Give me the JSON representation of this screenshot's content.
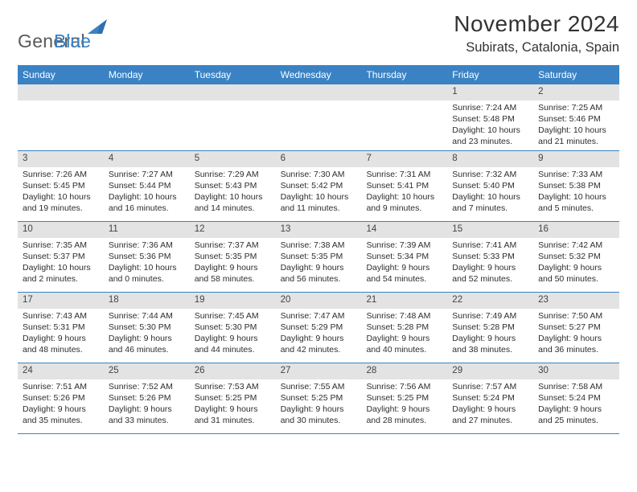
{
  "logo": {
    "word1": "General",
    "word2": "Blue",
    "color_general": "#5a5a5a",
    "color_blue": "#3a82c4"
  },
  "title": {
    "month": "November 2024",
    "location": "Subirats, Catalonia, Spain",
    "title_fontsize": 28
  },
  "day_headers": [
    "Sunday",
    "Monday",
    "Tuesday",
    "Wednesday",
    "Thursday",
    "Friday",
    "Saturday"
  ],
  "colors": {
    "header_bg": "#3a82c4",
    "daynum_bg": "#e3e3e3",
    "border": "#3a82c4",
    "text": "#2d2d2d",
    "page_bg": "#ffffff"
  },
  "weeks": [
    [
      null,
      null,
      null,
      null,
      null,
      {
        "day": "1",
        "sunrise": "Sunrise: 7:24 AM",
        "sunset": "Sunset: 5:48 PM",
        "daylight": "Daylight: 10 hours and 23 minutes."
      },
      {
        "day": "2",
        "sunrise": "Sunrise: 7:25 AM",
        "sunset": "Sunset: 5:46 PM",
        "daylight": "Daylight: 10 hours and 21 minutes."
      }
    ],
    [
      {
        "day": "3",
        "sunrise": "Sunrise: 7:26 AM",
        "sunset": "Sunset: 5:45 PM",
        "daylight": "Daylight: 10 hours and 19 minutes."
      },
      {
        "day": "4",
        "sunrise": "Sunrise: 7:27 AM",
        "sunset": "Sunset: 5:44 PM",
        "daylight": "Daylight: 10 hours and 16 minutes."
      },
      {
        "day": "5",
        "sunrise": "Sunrise: 7:29 AM",
        "sunset": "Sunset: 5:43 PM",
        "daylight": "Daylight: 10 hours and 14 minutes."
      },
      {
        "day": "6",
        "sunrise": "Sunrise: 7:30 AM",
        "sunset": "Sunset: 5:42 PM",
        "daylight": "Daylight: 10 hours and 11 minutes."
      },
      {
        "day": "7",
        "sunrise": "Sunrise: 7:31 AM",
        "sunset": "Sunset: 5:41 PM",
        "daylight": "Daylight: 10 hours and 9 minutes."
      },
      {
        "day": "8",
        "sunrise": "Sunrise: 7:32 AM",
        "sunset": "Sunset: 5:40 PM",
        "daylight": "Daylight: 10 hours and 7 minutes."
      },
      {
        "day": "9",
        "sunrise": "Sunrise: 7:33 AM",
        "sunset": "Sunset: 5:38 PM",
        "daylight": "Daylight: 10 hours and 5 minutes."
      }
    ],
    [
      {
        "day": "10",
        "sunrise": "Sunrise: 7:35 AM",
        "sunset": "Sunset: 5:37 PM",
        "daylight": "Daylight: 10 hours and 2 minutes."
      },
      {
        "day": "11",
        "sunrise": "Sunrise: 7:36 AM",
        "sunset": "Sunset: 5:36 PM",
        "daylight": "Daylight: 10 hours and 0 minutes."
      },
      {
        "day": "12",
        "sunrise": "Sunrise: 7:37 AM",
        "sunset": "Sunset: 5:35 PM",
        "daylight": "Daylight: 9 hours and 58 minutes."
      },
      {
        "day": "13",
        "sunrise": "Sunrise: 7:38 AM",
        "sunset": "Sunset: 5:35 PM",
        "daylight": "Daylight: 9 hours and 56 minutes."
      },
      {
        "day": "14",
        "sunrise": "Sunrise: 7:39 AM",
        "sunset": "Sunset: 5:34 PM",
        "daylight": "Daylight: 9 hours and 54 minutes."
      },
      {
        "day": "15",
        "sunrise": "Sunrise: 7:41 AM",
        "sunset": "Sunset: 5:33 PM",
        "daylight": "Daylight: 9 hours and 52 minutes."
      },
      {
        "day": "16",
        "sunrise": "Sunrise: 7:42 AM",
        "sunset": "Sunset: 5:32 PM",
        "daylight": "Daylight: 9 hours and 50 minutes."
      }
    ],
    [
      {
        "day": "17",
        "sunrise": "Sunrise: 7:43 AM",
        "sunset": "Sunset: 5:31 PM",
        "daylight": "Daylight: 9 hours and 48 minutes."
      },
      {
        "day": "18",
        "sunrise": "Sunrise: 7:44 AM",
        "sunset": "Sunset: 5:30 PM",
        "daylight": "Daylight: 9 hours and 46 minutes."
      },
      {
        "day": "19",
        "sunrise": "Sunrise: 7:45 AM",
        "sunset": "Sunset: 5:30 PM",
        "daylight": "Daylight: 9 hours and 44 minutes."
      },
      {
        "day": "20",
        "sunrise": "Sunrise: 7:47 AM",
        "sunset": "Sunset: 5:29 PM",
        "daylight": "Daylight: 9 hours and 42 minutes."
      },
      {
        "day": "21",
        "sunrise": "Sunrise: 7:48 AM",
        "sunset": "Sunset: 5:28 PM",
        "daylight": "Daylight: 9 hours and 40 minutes."
      },
      {
        "day": "22",
        "sunrise": "Sunrise: 7:49 AM",
        "sunset": "Sunset: 5:28 PM",
        "daylight": "Daylight: 9 hours and 38 minutes."
      },
      {
        "day": "23",
        "sunrise": "Sunrise: 7:50 AM",
        "sunset": "Sunset: 5:27 PM",
        "daylight": "Daylight: 9 hours and 36 minutes."
      }
    ],
    [
      {
        "day": "24",
        "sunrise": "Sunrise: 7:51 AM",
        "sunset": "Sunset: 5:26 PM",
        "daylight": "Daylight: 9 hours and 35 minutes."
      },
      {
        "day": "25",
        "sunrise": "Sunrise: 7:52 AM",
        "sunset": "Sunset: 5:26 PM",
        "daylight": "Daylight: 9 hours and 33 minutes."
      },
      {
        "day": "26",
        "sunrise": "Sunrise: 7:53 AM",
        "sunset": "Sunset: 5:25 PM",
        "daylight": "Daylight: 9 hours and 31 minutes."
      },
      {
        "day": "27",
        "sunrise": "Sunrise: 7:55 AM",
        "sunset": "Sunset: 5:25 PM",
        "daylight": "Daylight: 9 hours and 30 minutes."
      },
      {
        "day": "28",
        "sunrise": "Sunrise: 7:56 AM",
        "sunset": "Sunset: 5:25 PM",
        "daylight": "Daylight: 9 hours and 28 minutes."
      },
      {
        "day": "29",
        "sunrise": "Sunrise: 7:57 AM",
        "sunset": "Sunset: 5:24 PM",
        "daylight": "Daylight: 9 hours and 27 minutes."
      },
      {
        "day": "30",
        "sunrise": "Sunrise: 7:58 AM",
        "sunset": "Sunset: 5:24 PM",
        "daylight": "Daylight: 9 hours and 25 minutes."
      }
    ]
  ]
}
